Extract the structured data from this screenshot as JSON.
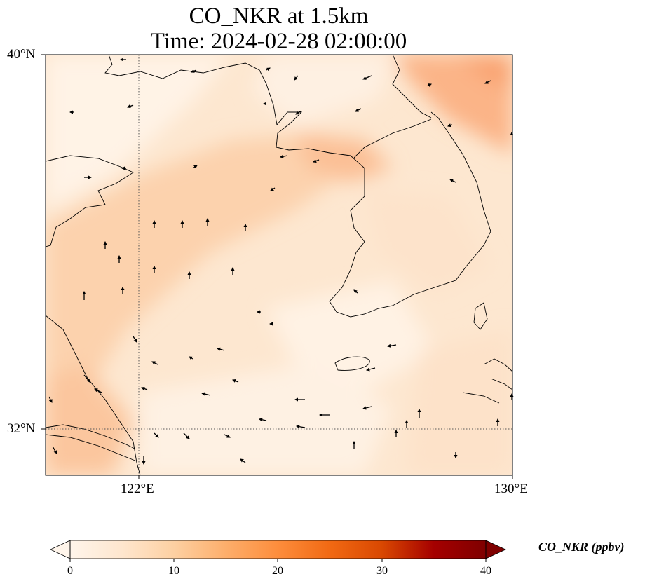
{
  "title_line1": "CO_NKR at 1.5km",
  "title_line2": "Time: 2024-02-28 02:00:00",
  "lat_ticks": [
    "40°N",
    "32°N"
  ],
  "lon_ticks": [
    "122°E",
    "130°E"
  ],
  "colorbar": {
    "label": "CO_NKR (ppbv)",
    "ticks": [
      "0",
      "10",
      "20",
      "30",
      "40"
    ],
    "range": [
      0,
      40
    ],
    "colormap": "Oranges",
    "extend": "both",
    "colors": [
      "#fff5eb",
      "#fee6ce",
      "#fdd0a2",
      "#fdae6b",
      "#fd8d3c",
      "#f16913",
      "#d94801",
      "#a50000",
      "#6b0000"
    ]
  },
  "map": {
    "lon_range": [
      120,
      130
    ],
    "lat_range": [
      31,
      40
    ],
    "gridlines": "dotted at 122°E and 32°N",
    "field_range_ppbv": [
      0,
      16
    ],
    "overlay": "wind vectors (arrows)"
  }
}
